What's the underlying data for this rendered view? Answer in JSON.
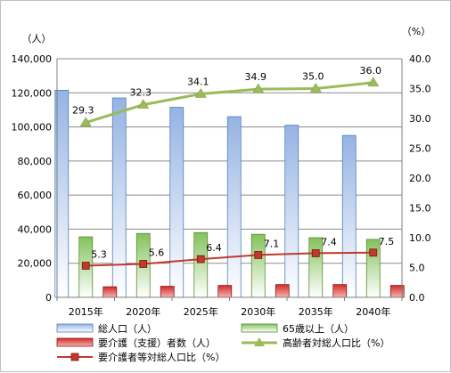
{
  "chart_data": {
    "type": "bar",
    "categories": [
      "2015年",
      "2020年",
      "2025年",
      "2030年",
      "2035年",
      "2040年"
    ],
    "y_left": {
      "unit": "（人）",
      "range": [
        0,
        140000
      ],
      "ticks": [
        "0",
        "20,000",
        "40,000",
        "60,000",
        "80,000",
        "100,000",
        "120,000",
        "140,000"
      ]
    },
    "y_right": {
      "unit": "（%）",
      "range": [
        0,
        40
      ],
      "ticks": [
        "0.0",
        "5.0",
        "10.0",
        "15.0",
        "20.0",
        "25.0",
        "30.0",
        "35.0",
        "40.0"
      ]
    },
    "grid": true,
    "series": [
      {
        "name": "総人口（人）",
        "kind": "bar",
        "axis": "left",
        "color": "#9db9e6",
        "values": [
          121500,
          117000,
          111500,
          106000,
          101000,
          95000
        ]
      },
      {
        "name": "65歳以上（人）",
        "kind": "bar",
        "axis": "left",
        "color": "#8fc86b",
        "values": [
          35500,
          37500,
          38000,
          37000,
          35000,
          34000
        ]
      },
      {
        "name": "要介護（支援）者数（人）",
        "kind": "bar",
        "axis": "left",
        "color": "#d9312c",
        "values": [
          6200,
          6500,
          7000,
          7500,
          7500,
          7000
        ]
      },
      {
        "name": "高齢者対総人口比（%）",
        "kind": "line",
        "axis": "right",
        "color": "#9bbb59",
        "marker": "triangle",
        "values": [
          29.3,
          32.3,
          34.1,
          34.9,
          35.0,
          36.0
        ],
        "labels": [
          "29.3",
          "32.3",
          "34.1",
          "34.9",
          "35.0",
          "36.0"
        ]
      },
      {
        "name": "要介護者等対総人口比（%）",
        "kind": "line",
        "axis": "right",
        "color": "#c0392b",
        "marker": "square",
        "values": [
          5.3,
          5.6,
          6.4,
          7.1,
          7.4,
          7.5
        ],
        "labels": [
          "5.3",
          "5.6",
          "6.4",
          "7.1",
          "7.4",
          "7.5"
        ]
      }
    ],
    "legend": {
      "placement": "bottom",
      "rows": [
        [
          "総人口（人）",
          "65歳以上（人）"
        ],
        [
          "要介護（支援）者数（人）",
          "高齢者対総人口比（%）"
        ],
        [
          "要介護者等対総人口比（%）"
        ]
      ]
    }
  }
}
